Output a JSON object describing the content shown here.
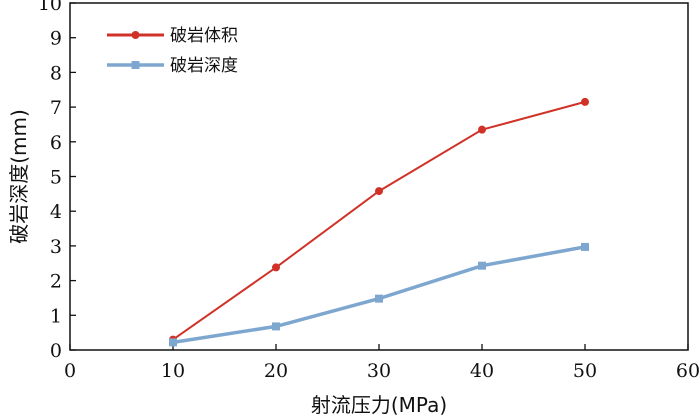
{
  "chart_data": {
    "type": "line",
    "xlabel": "射流压力(MPa)",
    "ylabel": "破岩深度(mm)",
    "xlim": [
      0,
      60
    ],
    "ylim": [
      0,
      10
    ],
    "xticks": [
      0,
      10,
      20,
      30,
      40,
      50,
      60
    ],
    "yticks": [
      0,
      1,
      2,
      3,
      4,
      5,
      6,
      7,
      8,
      9,
      10
    ],
    "grid": false,
    "legend": "top-left",
    "series": [
      {
        "name": "破岩体积",
        "color": "#d03228",
        "marker": "circle",
        "x": [
          10,
          20,
          30,
          40,
          50
        ],
        "y": [
          0.3,
          2.38,
          4.58,
          6.35,
          7.15
        ]
      },
      {
        "name": "破岩深度",
        "color": "#7ea7cf",
        "marker": "square",
        "x": [
          10,
          20,
          30,
          40,
          50
        ],
        "y": [
          0.22,
          0.68,
          1.48,
          2.43,
          2.97
        ]
      }
    ]
  }
}
